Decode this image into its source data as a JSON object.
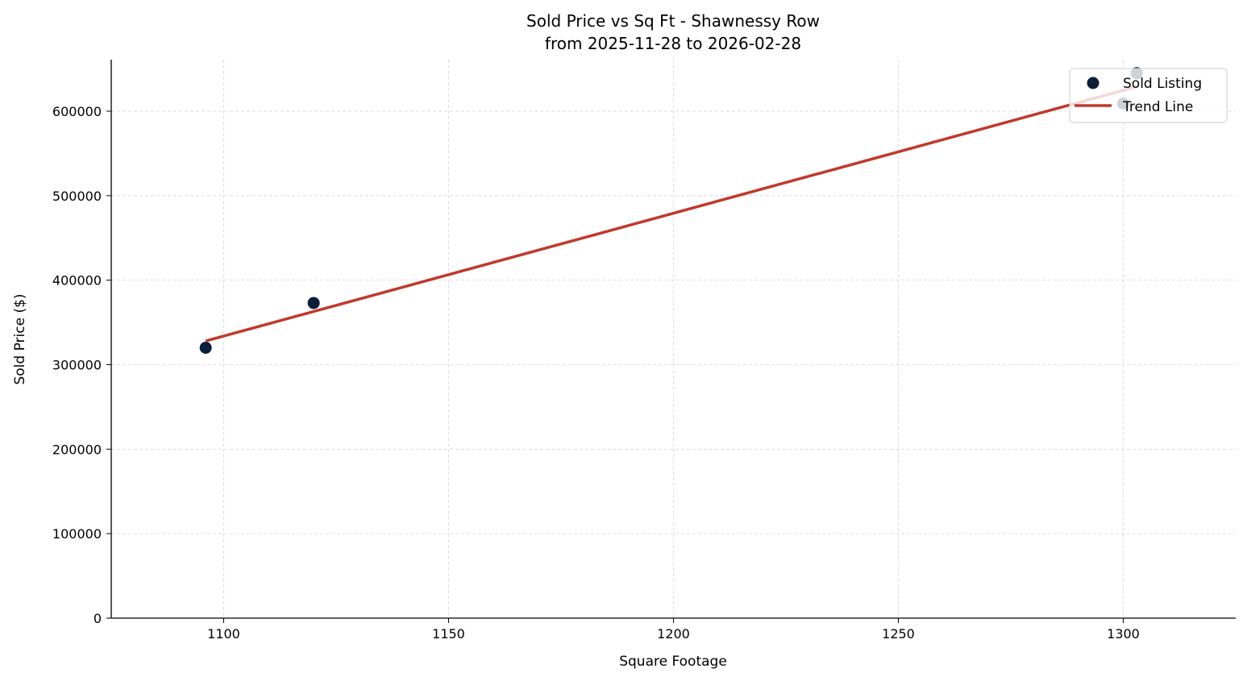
{
  "chart_data": {
    "type": "scatter",
    "title": "Sold Price vs Sq Ft - Shawnessy Row",
    "subtitle": "from 2025-11-28 to 2026-02-28",
    "xlabel": "Square Footage",
    "ylabel": "Sold Price ($)",
    "xlim": [
      1075,
      1325
    ],
    "ylim": [
      0,
      661000
    ],
    "xticks": [
      1100,
      1150,
      1200,
      1250,
      1300
    ],
    "yticks": [
      0,
      100000,
      200000,
      300000,
      400000,
      500000,
      600000
    ],
    "grid": true,
    "legend_placement": "top-right",
    "series": [
      {
        "name": "Sold Listing",
        "kind": "scatter",
        "color": "#0b1f3a",
        "points": [
          [
            1096,
            320000
          ],
          [
            1120,
            373000
          ],
          [
            1300,
            609000
          ],
          [
            1303,
            645000
          ]
        ]
      },
      {
        "name": "Trend Line",
        "kind": "line",
        "color": "#c0392b",
        "points": [
          [
            1096,
            328000
          ],
          [
            1303,
            629000
          ]
        ]
      }
    ]
  }
}
